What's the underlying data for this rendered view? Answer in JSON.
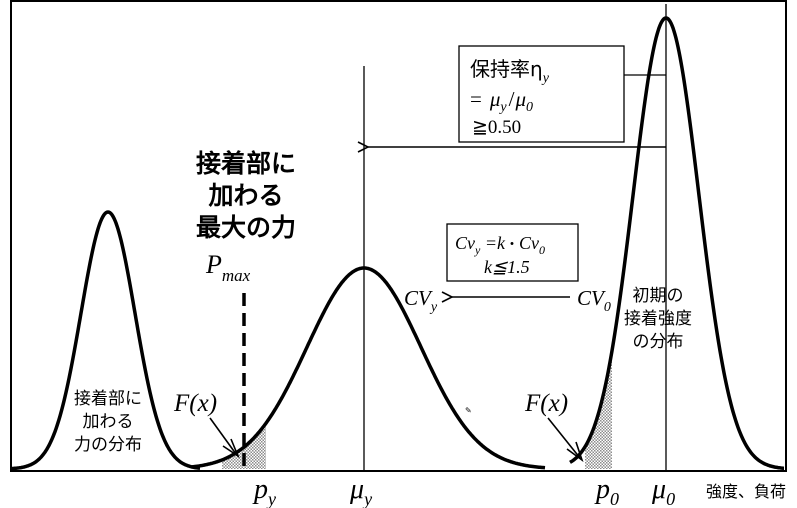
{
  "colors": {
    "stroke": "#000000",
    "hatch": "#8c8c8c",
    "background": "#ffffff"
  },
  "labels": {
    "max_force": [
      "接着部に",
      "加わる",
      "最大の力"
    ],
    "p_max_main": "P",
    "p_max_sub": "max",
    "left_dist": [
      "接着部に",
      "加わる",
      "力の分布"
    ],
    "right_dist": [
      "初期の",
      "接着強度",
      "の分布"
    ],
    "fx": "F(x)",
    "cv_y_main": "CV",
    "cv_y_sub": "y",
    "cv_0_main": "CV",
    "cv_0_sub": "0"
  },
  "box_retention": {
    "line1": "保持率η",
    "line1_sub": "y",
    "line2_eq": "=",
    "line2_mu": "μ",
    "line2_sub_y": "y",
    "line2_slash": "/",
    "line2_mu0": "μ",
    "line2_sub_0": "0",
    "line3": "≧0.50"
  },
  "box_cv": {
    "line1_a": "Cv",
    "line1_sub_y": "y",
    "line1_b": " =k",
    "line1_dot": "・",
    "line1_c": "Cv",
    "line1_sub_0": "0",
    "line2": "k≦1.5"
  },
  "axis": {
    "ticks": [
      {
        "main": "p",
        "sub": "y"
      },
      {
        "main": "μ",
        "sub": "y"
      },
      {
        "main": "p",
        "sub": "0"
      },
      {
        "main": "μ",
        "sub": "0"
      }
    ],
    "title": "強度、負荷"
  }
}
